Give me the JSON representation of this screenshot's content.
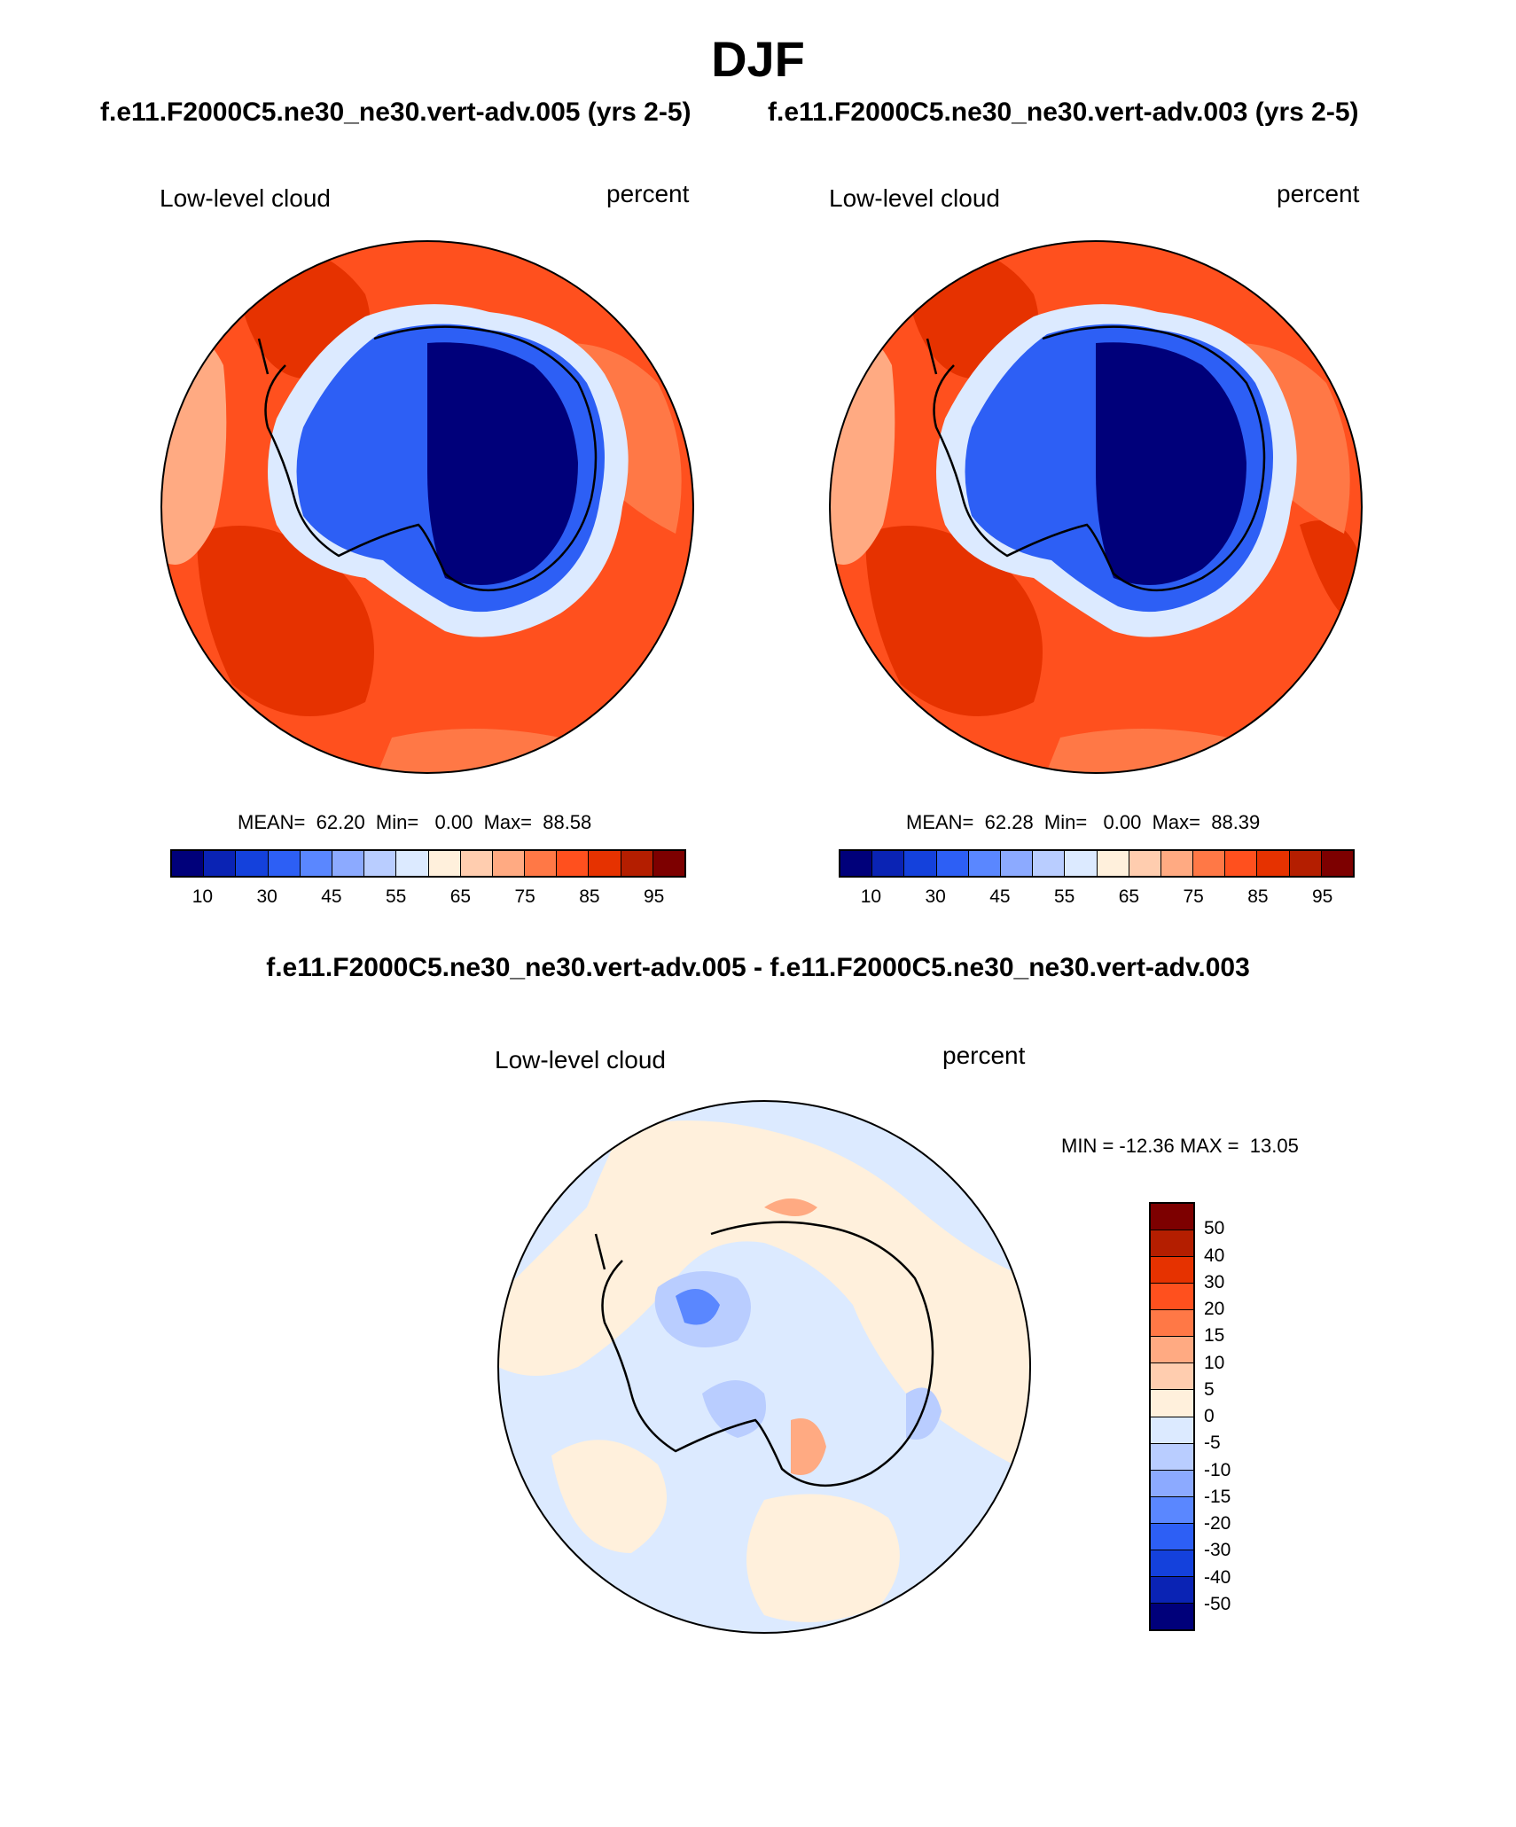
{
  "season": "DJF",
  "panel_left": {
    "case_title": "f.e11.F2000C5.ne30_ne30.vert-adv.005 (yrs 2-5)",
    "variable": "Low-level cloud",
    "units": "percent",
    "stats": "MEAN=  62.20  Min=   0.00  Max=  88.58"
  },
  "panel_right": {
    "case_title": "f.e11.F2000C5.ne30_ne30.vert-adv.003 (yrs 2-5)",
    "variable": "Low-level cloud",
    "units": "percent",
    "stats": "MEAN=  62.28  Min=   0.00  Max=  88.39"
  },
  "panel_diff": {
    "case_title": "f.e11.F2000C5.ne30_ne30.vert-adv.005 - f.e11.F2000C5.ne30_ne30.vert-adv.003",
    "variable": "Low-level cloud",
    "units": "percent",
    "stats": "MIN = -12.36 MAX =  13.05"
  },
  "colorbar_main": {
    "ticks": [
      "10",
      "30",
      "45",
      "55",
      "65",
      "75",
      "85",
      "95"
    ],
    "colors": [
      "#00007a",
      "#0a23b4",
      "#1441dc",
      "#2d5ff5",
      "#5a87ff",
      "#8caaff",
      "#b9cdff",
      "#dceaff",
      "#fff0dc",
      "#ffcdaf",
      "#ffaa82",
      "#ff7846",
      "#ff501e",
      "#e63200",
      "#b41e00",
      "#7d0000"
    ]
  },
  "colorbar_diff": {
    "ticks": [
      "50",
      "40",
      "30",
      "20",
      "15",
      "10",
      "5",
      "0",
      "-5",
      "-10",
      "-15",
      "-20",
      "-30",
      "-40",
      "-50"
    ],
    "colors": [
      "#7d0000",
      "#b41e00",
      "#e63200",
      "#ff501e",
      "#ff7846",
      "#ffaa82",
      "#ffcdaf",
      "#fff0dc",
      "#dceaff",
      "#b9cdff",
      "#8caaff",
      "#5a87ff",
      "#2d5ff5",
      "#1441dc",
      "#0a23b4",
      "#00007a"
    ]
  },
  "map_colors": {
    "ocean_main": "#ff501e",
    "ocean_dark": "#e63200",
    "ocean_light": "#ff7846",
    "ocean_pale": "#ffaa82",
    "ice_edge": "#dceaff",
    "ice_mid": "#2d5ff5",
    "ice_core": "#00007a",
    "diff_pos": "#fff0dc",
    "diff_neg": "#dceaff",
    "diff_negmid": "#b9cdff",
    "diff_negstrong": "#5a87ff",
    "diff_posmid": "#ffaa82"
  }
}
